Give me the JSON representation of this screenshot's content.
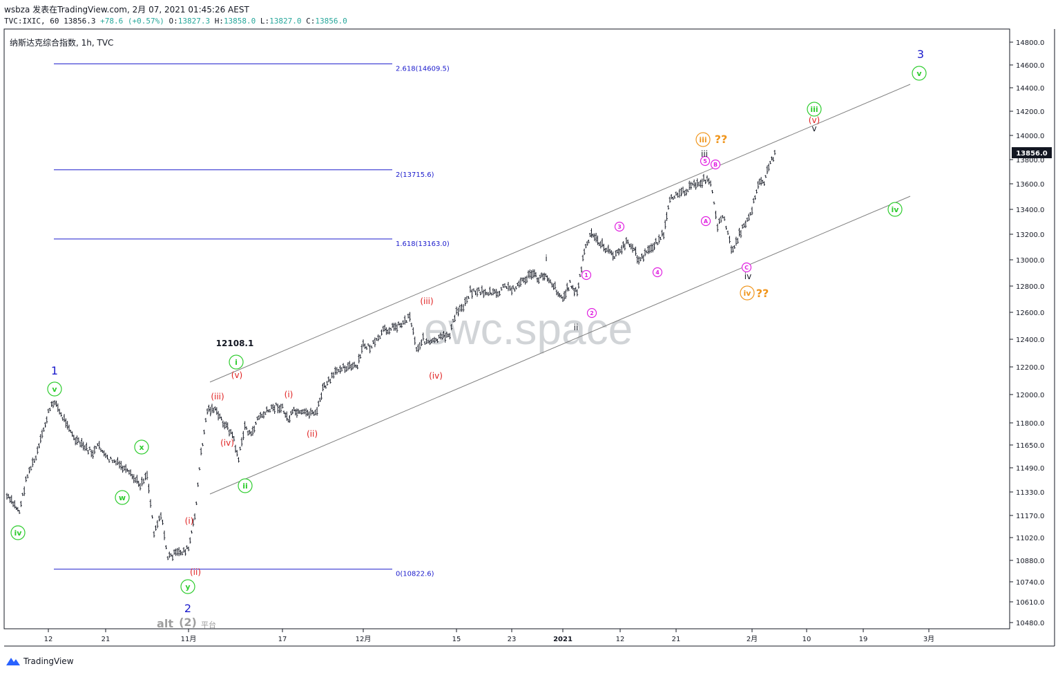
{
  "header": {
    "line1": "wsbza 发表在TradingView.com, 2月 07, 2021 01:45:26 AEST",
    "symbol": "TVC:IXIC, 60",
    "last": "13856.3",
    "change": "+78.6",
    "change_pct": "(+0.57%)",
    "o_label": "O:",
    "o": "13827.3",
    "h_label": "H:",
    "h": "13858.0",
    "l_label": "L:",
    "l": "13827.0",
    "c_label": "C:",
    "c": "13856.0"
  },
  "chart_title": "纳斯达克综合指数, 1h, TVC",
  "watermark": "ewc.space",
  "price_tag": "13856.0",
  "footer": {
    "brand": "TradingView"
  },
  "colors": {
    "fib": "#1a1acc",
    "wave_green": "#2ecc2e",
    "wave_red": "#e02020",
    "wave_magenta": "#e020e0",
    "wave_orange": "#f0961e",
    "wave_blue": "#1a1acc",
    "channel": "#7f7f7f",
    "bars": "#131722",
    "price_tag_bg": "#131722"
  },
  "chart_data": {
    "type": "ohlc",
    "ylim": [
      10400,
      14900
    ],
    "y_ticks": [
      14800.0,
      14600.0,
      14400.0,
      14200.0,
      14000.0,
      13800.0,
      13600.0,
      13400.0,
      13200.0,
      13000.0,
      12800.0,
      12600.0,
      12400.0,
      12200.0,
      12000.0,
      11800.0,
      11650.0,
      11490.0,
      11330.0,
      11170.0,
      11020.0,
      10880.0,
      10740.0,
      10610.0,
      10480.0
    ],
    "x_ticks": [
      "12",
      "21",
      "11月",
      "17",
      "12月",
      "15",
      "23",
      "2021",
      "12",
      "21",
      "2月",
      "10",
      "19",
      "3月"
    ],
    "fib_levels": [
      {
        "label": "2.618(14609.5)",
        "value": 14609.5
      },
      {
        "label": "2(13715.6)",
        "value": 13715.6
      },
      {
        "label": "1.618(13163.0)",
        "value": 13163.0
      },
      {
        "label": "0(10822.6)",
        "value": 10822.6
      }
    ],
    "annotations": {
      "price_label": "12108.1",
      "green": [
        "iv",
        "v",
        "w",
        "x",
        "y",
        "i",
        "ii",
        "iii",
        "iv",
        "v"
      ],
      "red": [
        "(i)",
        "(ii)",
        "(iii)",
        "(iv)",
        "(v)",
        "(i)",
        "(ii)",
        "(iii)",
        "(iv)",
        "(v)"
      ],
      "magenta": [
        "1",
        "2",
        "3",
        "4",
        "5",
        "A",
        "B",
        "C"
      ],
      "black": [
        "i",
        "ii",
        "iii",
        "iv",
        "v"
      ],
      "orange": [
        "iii",
        "iv",
        "??",
        "??"
      ],
      "blue": [
        "1",
        "2",
        "3"
      ],
      "grey": [
        "alt",
        "(2)",
        "平台"
      ]
    },
    "series_path": [
      [
        "2020-10-02",
        11300
      ],
      [
        "2020-10-05",
        11200
      ],
      [
        "2020-10-07",
        11450
      ],
      [
        "2020-10-09",
        11560
      ],
      [
        "2020-10-12",
        11870
      ],
      [
        "2020-10-13",
        11960
      ],
      [
        "2020-10-14",
        11850
      ],
      [
        "2020-10-15",
        11800
      ],
      [
        "2020-10-16",
        11690
      ],
      [
        "2020-10-19",
        11590
      ],
      [
        "2020-10-20",
        11650
      ],
      [
        "2020-10-21",
        11560
      ],
      [
        "2020-10-22",
        11540
      ],
      [
        "2020-10-23",
        11510
      ],
      [
        "2020-10-26",
        11380
      ],
      [
        "2020-10-27",
        11450
      ],
      [
        "2020-10-28",
        11060
      ],
      [
        "2020-10-29",
        11180
      ],
      [
        "2020-10-30",
        10900
      ],
      [
        "2020-11-02",
        10950
      ],
      [
        "2020-11-03",
        11160
      ],
      [
        "2020-11-04",
        11590
      ],
      [
        "2020-11-05",
        11890
      ],
      [
        "2020-11-06",
        11900
      ],
      [
        "2020-11-09",
        11720
      ],
      [
        "2020-11-10",
        11550
      ],
      [
        "2020-11-11",
        11780
      ],
      [
        "2020-11-12",
        11710
      ],
      [
        "2020-11-13",
        11830
      ],
      [
        "2020-11-16",
        11920
      ],
      [
        "2020-11-17",
        11900
      ],
      [
        "2020-11-18",
        11820
      ],
      [
        "2020-11-19",
        11880
      ],
      [
        "2020-11-20",
        11860
      ],
      [
        "2020-11-23",
        11880
      ],
      [
        "2020-11-24",
        12040
      ],
      [
        "2020-11-25",
        12090
      ],
      [
        "2020-11-27",
        12200
      ],
      [
        "2020-11-30",
        12200
      ],
      [
        "2020-12-01",
        12360
      ],
      [
        "2020-12-02",
        12340
      ],
      [
        "2020-12-03",
        12380
      ],
      [
        "2020-12-04",
        12460
      ],
      [
        "2020-12-07",
        12520
      ],
      [
        "2020-12-08",
        12580
      ],
      [
        "2020-12-09",
        12330
      ],
      [
        "2020-12-10",
        12400
      ],
      [
        "2020-12-11",
        12370
      ],
      [
        "2020-12-14",
        12440
      ],
      [
        "2020-12-15",
        12600
      ],
      [
        "2020-12-16",
        12650
      ],
      [
        "2020-12-17",
        12760
      ],
      [
        "2020-12-18",
        12760
      ],
      [
        "2020-12-21",
        12740
      ],
      [
        "2020-12-22",
        12800
      ],
      [
        "2020-12-23",
        12770
      ],
      [
        "2020-12-24",
        12800
      ],
      [
        "2020-12-28",
        12900
      ],
      [
        "2020-12-29",
        12850
      ],
      [
        "2020-12-30",
        12870
      ],
      [
        "2020-12-31",
        12890
      ],
      [
        "2021-01-04",
        12700
      ],
      [
        "2021-01-05",
        12820
      ],
      [
        "2021-01-06",
        12740
      ],
      [
        "2021-01-07",
        13070
      ],
      [
        "2021-01-08",
        13200
      ],
      [
        "2021-01-11",
        13030
      ],
      [
        "2021-01-12",
        13070
      ],
      [
        "2021-01-13",
        13130
      ],
      [
        "2021-01-14",
        13110
      ],
      [
        "2021-01-15",
        12990
      ],
      [
        "2021-01-19",
        13200
      ],
      [
        "2021-01-20",
        13460
      ],
      [
        "2021-01-21",
        13530
      ],
      [
        "2021-01-22",
        13540
      ],
      [
        "2021-01-25",
        13630
      ],
      [
        "2021-01-26",
        13620
      ],
      [
        "2021-01-27",
        13270
      ],
      [
        "2021-01-28",
        13340
      ],
      [
        "2021-01-29",
        13070
      ],
      [
        "2021-02-01",
        13400
      ],
      [
        "2021-02-02",
        13610
      ],
      [
        "2021-02-03",
        13620
      ],
      [
        "2021-02-04",
        13780
      ],
      [
        "2021-02-05",
        13856
      ]
    ]
  }
}
